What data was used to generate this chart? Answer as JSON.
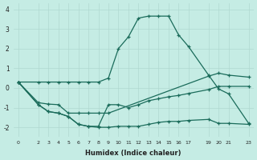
{
  "xlabel": "Humidex (Indice chaleur)",
  "background_color": "#c5ece4",
  "grid_color": "#b0d8d0",
  "line_color": "#1a6b5a",
  "line1_x": [
    0,
    2,
    3,
    4,
    5,
    6,
    7,
    8,
    9,
    10,
    11,
    12,
    13,
    14,
    15,
    16,
    17,
    19,
    20,
    21,
    23
  ],
  "line1_y": [
    0.3,
    0.3,
    0.3,
    0.3,
    0.3,
    0.3,
    0.3,
    0.3,
    0.5,
    2.0,
    2.6,
    3.55,
    3.65,
    3.65,
    3.65,
    2.7,
    2.1,
    0.65,
    -0.05,
    -0.3,
    -1.8
  ],
  "line2_x": [
    0,
    2,
    3,
    4,
    5,
    6,
    7,
    8,
    9,
    19,
    20,
    21,
    23
  ],
  "line2_y": [
    0.3,
    -0.75,
    -0.82,
    -0.85,
    -1.28,
    -1.28,
    -1.28,
    -1.28,
    -1.28,
    0.6,
    0.75,
    0.65,
    0.55
  ],
  "line3_x": [
    0,
    2,
    3,
    4,
    5,
    6,
    7,
    8,
    9,
    10,
    11,
    12,
    13,
    14,
    15,
    16,
    17,
    19,
    20,
    21,
    23
  ],
  "line3_y": [
    0.3,
    -0.85,
    -1.2,
    -1.28,
    -1.45,
    -1.85,
    -1.95,
    -1.95,
    -0.85,
    -0.85,
    -1.0,
    -0.85,
    -0.65,
    -0.55,
    -0.45,
    -0.38,
    -0.28,
    -0.08,
    0.08,
    0.08,
    0.08
  ],
  "line4_x": [
    0,
    2,
    3,
    4,
    5,
    6,
    7,
    8,
    9,
    10,
    11,
    12,
    13,
    14,
    15,
    16,
    17,
    19,
    20,
    21,
    23
  ],
  "line4_y": [
    0.3,
    -0.85,
    -1.2,
    -1.28,
    -1.45,
    -1.85,
    -1.95,
    -2.0,
    -2.0,
    -1.95,
    -1.95,
    -1.95,
    -1.85,
    -1.75,
    -1.7,
    -1.7,
    -1.65,
    -1.6,
    -1.8,
    -1.8,
    -1.85
  ],
  "xlim": [
    -0.5,
    23.5
  ],
  "ylim": [
    -2.5,
    4.3
  ],
  "yticks": [
    -2,
    -1,
    0,
    1,
    2,
    3,
    4
  ],
  "xticks": [
    0,
    2,
    3,
    4,
    5,
    6,
    7,
    8,
    9,
    10,
    11,
    12,
    13,
    14,
    15,
    16,
    17,
    19,
    20,
    21,
    23
  ]
}
